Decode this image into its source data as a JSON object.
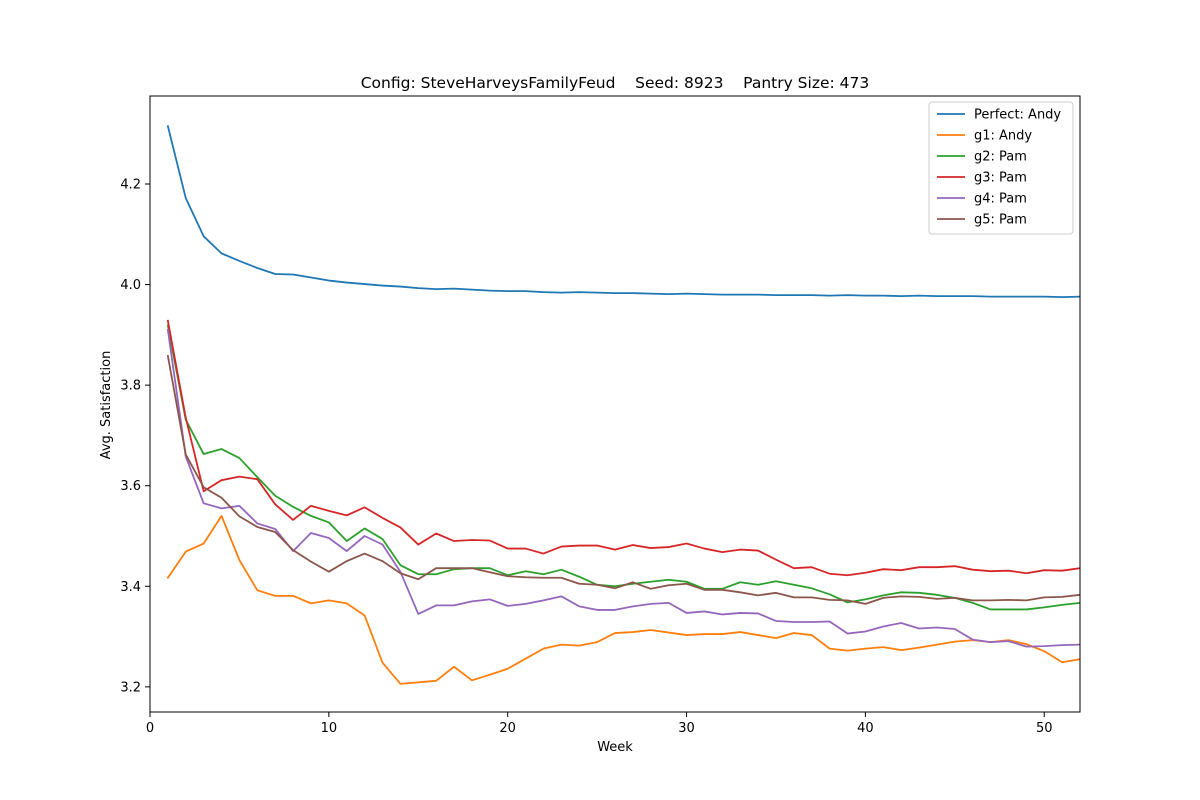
{
  "chart_data": {
    "type": "line",
    "title": "Config: SteveHarveysFamilyFeud    Seed: 8923    Pantry Size: 473",
    "xlabel": "Week",
    "ylabel": "Avg. Satisfaction",
    "xlim": [
      0,
      52
    ],
    "ylim": [
      3.15,
      4.375
    ],
    "xticks": [
      0,
      10,
      20,
      30,
      40,
      50
    ],
    "yticks": [
      3.2,
      3.4,
      3.6,
      3.8,
      4.0,
      4.2
    ],
    "grid": false,
    "legend_position": "top-right",
    "x": [
      1,
      2,
      3,
      4,
      5,
      6,
      7,
      8,
      9,
      10,
      11,
      12,
      13,
      14,
      15,
      16,
      17,
      18,
      19,
      20,
      21,
      22,
      23,
      24,
      25,
      26,
      27,
      28,
      29,
      30,
      31,
      32,
      33,
      34,
      35,
      36,
      37,
      38,
      39,
      40,
      41,
      42,
      43,
      44,
      45,
      46,
      47,
      48,
      49,
      50,
      51,
      52
    ],
    "series": [
      {
        "name": "Perfect: Andy",
        "color": "#1f77b4",
        "values": [
          4.315,
          4.172,
          4.096,
          4.062,
          4.047,
          4.033,
          4.021,
          4.02,
          4.014,
          4.008,
          4.004,
          4.001,
          3.998,
          3.996,
          3.993,
          3.991,
          3.992,
          3.99,
          3.988,
          3.987,
          3.987,
          3.985,
          3.984,
          3.985,
          3.984,
          3.983,
          3.983,
          3.982,
          3.981,
          3.982,
          3.981,
          3.98,
          3.98,
          3.98,
          3.979,
          3.979,
          3.979,
          3.978,
          3.979,
          3.978,
          3.978,
          3.977,
          3.978,
          3.977,
          3.977,
          3.977,
          3.976,
          3.976,
          3.976,
          3.976,
          3.975,
          3.976
        ]
      },
      {
        "name": "g1: Andy",
        "color": "#ff7f0e",
        "values": [
          3.417,
          3.469,
          3.485,
          3.54,
          3.452,
          3.392,
          3.381,
          3.381,
          3.366,
          3.372,
          3.366,
          3.342,
          3.248,
          3.206,
          3.209,
          3.212,
          3.24,
          3.213,
          3.224,
          3.236,
          3.256,
          3.276,
          3.284,
          3.282,
          3.289,
          3.307,
          3.309,
          3.313,
          3.308,
          3.303,
          3.305,
          3.305,
          3.309,
          3.303,
          3.297,
          3.307,
          3.303,
          3.276,
          3.272,
          3.276,
          3.279,
          3.273,
          3.278,
          3.284,
          3.29,
          3.293,
          3.289,
          3.293,
          3.285,
          3.271,
          3.249,
          3.255
        ]
      },
      {
        "name": "g2: Pam",
        "color": "#2ca02c",
        "values": [
          3.919,
          3.731,
          3.663,
          3.673,
          3.655,
          3.617,
          3.58,
          3.558,
          3.54,
          3.527,
          3.49,
          3.515,
          3.494,
          3.442,
          3.424,
          3.424,
          3.434,
          3.436,
          3.436,
          3.422,
          3.43,
          3.424,
          3.433,
          3.419,
          3.403,
          3.4,
          3.405,
          3.409,
          3.413,
          3.409,
          3.395,
          3.395,
          3.408,
          3.403,
          3.41,
          3.403,
          3.396,
          3.384,
          3.368,
          3.374,
          3.382,
          3.388,
          3.387,
          3.383,
          3.377,
          3.367,
          3.354,
          3.354,
          3.354,
          3.358,
          3.363,
          3.367
        ]
      },
      {
        "name": "g3: Pam",
        "color": "#d62728",
        "values": [
          3.928,
          3.735,
          3.589,
          3.611,
          3.618,
          3.613,
          3.563,
          3.532,
          3.56,
          3.55,
          3.541,
          3.557,
          3.536,
          3.517,
          3.483,
          3.505,
          3.49,
          3.492,
          3.491,
          3.475,
          3.475,
          3.465,
          3.479,
          3.481,
          3.481,
          3.473,
          3.482,
          3.476,
          3.478,
          3.485,
          3.475,
          3.468,
          3.473,
          3.471,
          3.453,
          3.436,
          3.438,
          3.425,
          3.422,
          3.427,
          3.434,
          3.432,
          3.438,
          3.438,
          3.44,
          3.433,
          3.43,
          3.431,
          3.426,
          3.432,
          3.431,
          3.436
        ]
      },
      {
        "name": "g4: Pam",
        "color": "#9467bd",
        "values": [
          3.91,
          3.658,
          3.565,
          3.555,
          3.56,
          3.525,
          3.514,
          3.47,
          3.506,
          3.496,
          3.47,
          3.5,
          3.483,
          3.429,
          3.345,
          3.362,
          3.362,
          3.37,
          3.374,
          3.361,
          3.365,
          3.372,
          3.38,
          3.36,
          3.353,
          3.353,
          3.36,
          3.365,
          3.367,
          3.347,
          3.35,
          3.344,
          3.347,
          3.346,
          3.331,
          3.329,
          3.329,
          3.33,
          3.306,
          3.31,
          3.32,
          3.327,
          3.316,
          3.318,
          3.315,
          3.294,
          3.289,
          3.291,
          3.28,
          3.281,
          3.283,
          3.284
        ]
      },
      {
        "name": "g5: Pam",
        "color": "#8c564b",
        "values": [
          3.858,
          3.662,
          3.597,
          3.576,
          3.539,
          3.518,
          3.508,
          3.472,
          3.449,
          3.429,
          3.45,
          3.465,
          3.45,
          3.426,
          3.414,
          3.436,
          3.436,
          3.436,
          3.428,
          3.42,
          3.418,
          3.417,
          3.417,
          3.405,
          3.403,
          3.396,
          3.408,
          3.395,
          3.402,
          3.405,
          3.393,
          3.393,
          3.388,
          3.382,
          3.387,
          3.378,
          3.378,
          3.373,
          3.372,
          3.365,
          3.377,
          3.38,
          3.379,
          3.375,
          3.377,
          3.372,
          3.372,
          3.373,
          3.372,
          3.378,
          3.379,
          3.383
        ]
      }
    ]
  }
}
